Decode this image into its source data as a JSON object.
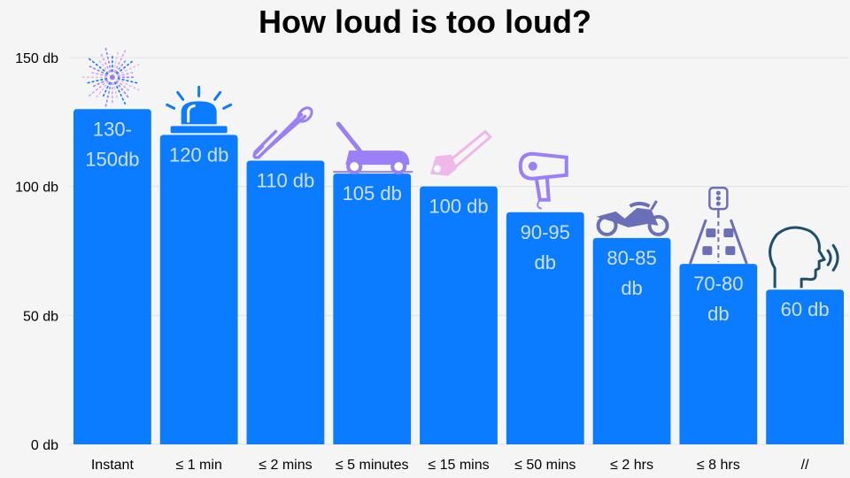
{
  "chart_data": {
    "type": "bar",
    "title": "How loud is too loud?",
    "xlabel": "",
    "ylabel": "",
    "ylim": [
      0,
      150
    ],
    "yticks": [
      0,
      50,
      100,
      150
    ],
    "ytick_labels": [
      "0 db",
      "50 db",
      "100 db",
      "150 db"
    ],
    "grid": "horizontal",
    "categories": [
      "Instant",
      "≤ 1 min",
      "≤ 2 mins",
      "≤ 5 minutes",
      "≤ 15 mins",
      "≤ 50 mins",
      "≤ 2 hrs",
      "≤ 8 hrs",
      "//"
    ],
    "values": [
      130,
      120,
      110,
      105,
      100,
      90,
      80,
      70,
      60
    ],
    "data_labels": [
      [
        "130-",
        "150db"
      ],
      [
        "120 db"
      ],
      [
        "110 db"
      ],
      [
        "105 db"
      ],
      [
        "100 db"
      ],
      [
        "90-95",
        "db"
      ],
      [
        "80-85",
        "db"
      ],
      [
        "70-80",
        "db"
      ],
      [
        "60 db"
      ]
    ],
    "icons": [
      "fireworks-icon",
      "siren-icon",
      "trombone-icon",
      "lawn-mower-icon",
      "chainsaw-icon",
      "hair-dryer-icon",
      "motorcycle-icon",
      "traffic-icon",
      "speaking-head-icon"
    ],
    "colors": {
      "bar": "#0b7cff",
      "data_label": "#cfe0ff",
      "background": "#f5f5f5",
      "grid": "#e2e2e2",
      "icon_blue": "#0b7cff",
      "icon_purple": "#9b7ff7",
      "icon_lavender": "#bfa7fa",
      "icon_pink": "#f0b8e8",
      "icon_slate": "#6b6fb8",
      "icon_dark": "#1d4e6b"
    }
  }
}
